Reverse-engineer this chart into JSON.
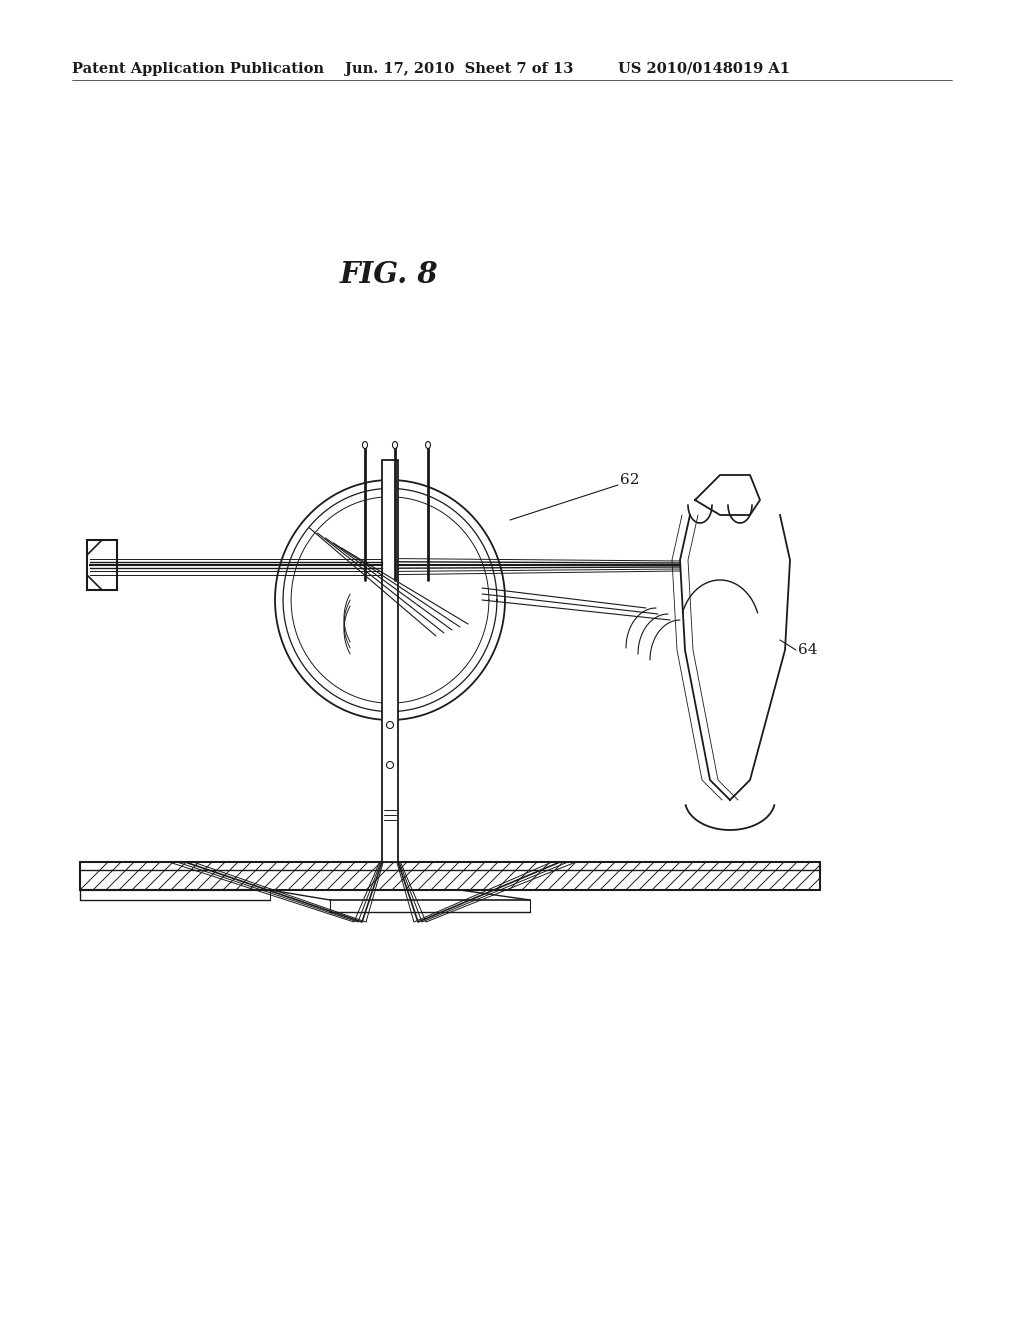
{
  "title": "FIG. 8",
  "header_left": "Patent Application Publication",
  "header_center": "Jun. 17, 2010  Sheet 7 of 13",
  "header_right": "US 2010/0148019 A1",
  "label_62": "62",
  "label_64": "64",
  "bg_color": "#ffffff",
  "line_color": "#1a1a1a",
  "header_fontsize": 10.5,
  "title_fontsize": 21,
  "label_fontsize": 11,
  "fig_width": 10.24,
  "fig_height": 13.2
}
